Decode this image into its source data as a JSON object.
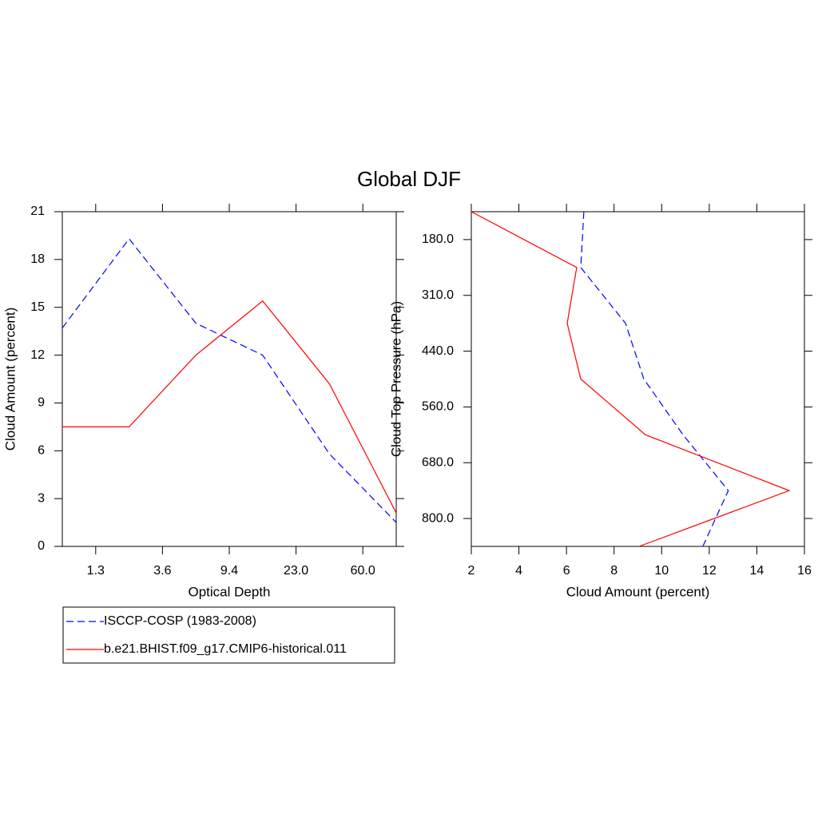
{
  "title": "Global DJF",
  "chart_data": [
    {
      "type": "line",
      "orientation": "vertical",
      "xlabel": "Optical Depth",
      "ylabel": "Cloud Amount (percent)",
      "x": [
        0,
        1,
        2,
        3,
        4,
        5
      ],
      "xlim": [
        0,
        5
      ],
      "xticks": [
        {
          "value": 0.5,
          "label": "1.3"
        },
        {
          "value": 1.5,
          "label": "3.6"
        },
        {
          "value": 2.5,
          "label": "9.4"
        },
        {
          "value": 3.5,
          "label": "23.0"
        },
        {
          "value": 4.5,
          "label": "60.0"
        }
      ],
      "ylim": [
        0,
        21
      ],
      "yticks": [
        0,
        3,
        6,
        9,
        12,
        15,
        18,
        21
      ],
      "series": [
        {
          "name": "ISCCP-COSP (1983-2008)",
          "color": "#0000ff",
          "dash": true,
          "values": [
            13.7,
            19.3,
            14.0,
            12.0,
            5.8,
            1.5
          ]
        },
        {
          "name": "b.e21.BHIST.f09_g17.CMIP6-historical.011",
          "color": "#ff0000",
          "dash": false,
          "values": [
            7.5,
            7.5,
            12.0,
            15.4,
            10.2,
            2.1
          ]
        }
      ]
    },
    {
      "type": "line",
      "orientation": "horizontal",
      "xlabel": "Cloud Amount (percent)",
      "ylabel": "Cloud Top Pressure (hPa)",
      "y": [
        6,
        5,
        4,
        3,
        2,
        1,
        0
      ],
      "ylim": [
        0,
        6
      ],
      "yticks": [
        {
          "value": 0.5,
          "label": "800.0"
        },
        {
          "value": 1.5,
          "label": "680.0"
        },
        {
          "value": 2.5,
          "label": "560.0"
        },
        {
          "value": 3.5,
          "label": "440.0"
        },
        {
          "value": 4.5,
          "label": "310.0"
        },
        {
          "value": 5.5,
          "label": "180.0"
        }
      ],
      "xlim": [
        2,
        16
      ],
      "xticks": [
        2,
        4,
        6,
        8,
        10,
        12,
        14,
        16
      ],
      "series": [
        {
          "color": "#0000ff",
          "dash": true,
          "values": [
            6.73,
            6.6,
            8.48,
            9.25,
            10.9,
            12.8,
            11.73
          ]
        },
        {
          "color": "#ff0000",
          "dash": false,
          "values": [
            2.0,
            6.43,
            6.03,
            6.6,
            9.32,
            15.36,
            9.05
          ]
        }
      ]
    }
  ]
}
